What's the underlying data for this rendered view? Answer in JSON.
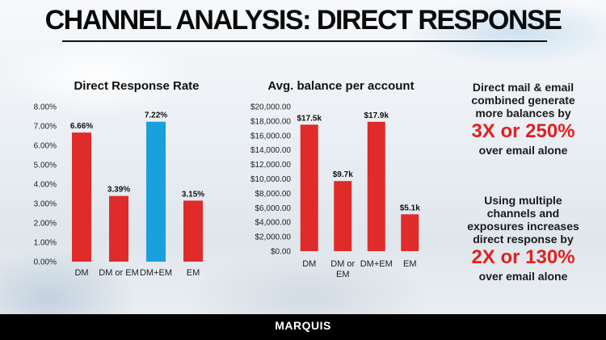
{
  "headline": "CHANNEL ANALYSIS: DIRECT RESPONSE",
  "colors": {
    "red": "#e02b2b",
    "blue": "#1aa0dc",
    "accent_text": "#e02020",
    "footer": "#000000"
  },
  "callouts": [
    {
      "lines": [
        "Direct mail & email",
        "combined generate",
        "more balances by"
      ],
      "big": "3X or 250%",
      "after": "over email alone"
    },
    {
      "lines": [
        "Using multiple",
        "channels and",
        "exposures increases",
        "direct response by"
      ],
      "big": "2X or 130%",
      "after": "over email alone"
    }
  ],
  "footer": {
    "logo_text": "MARQUIS"
  },
  "chart_data": [
    {
      "type": "bar",
      "title": "Direct Response Rate",
      "categories": [
        "DM",
        "DM or EM",
        "DM+EM",
        "EM"
      ],
      "values": [
        6.66,
        3.39,
        7.22,
        3.15
      ],
      "data_labels": [
        "6.66%",
        "3.39%",
        "7.22%",
        "3.15%"
      ],
      "bar_colors": [
        "#e02b2b",
        "#e02b2b",
        "#1aa0dc",
        "#e02b2b"
      ],
      "ylim": [
        0,
        8
      ],
      "yticks": [
        0,
        1,
        2,
        3,
        4,
        5,
        6,
        7,
        8
      ],
      "ytick_labels": [
        "0.00%",
        "1.00%",
        "2.00%",
        "3.00%",
        "4.00%",
        "5.00%",
        "6.00%",
        "7.00%",
        "8.00%"
      ],
      "grid": false,
      "legend": "none"
    },
    {
      "type": "bar",
      "title": "Avg. balance per account",
      "categories": [
        "DM",
        "DM or EM",
        "DM+EM",
        "EM"
      ],
      "values": [
        17500,
        9700,
        17900,
        5100
      ],
      "data_labels": [
        "$17.5k",
        "$9.7k",
        "$17.9k",
        "$5.1k"
      ],
      "bar_colors": [
        "#e02b2b",
        "#e02b2b",
        "#e02b2b",
        "#e02b2b"
      ],
      "ylim": [
        0,
        20000
      ],
      "yticks": [
        0,
        2000,
        4000,
        6000,
        8000,
        10000,
        12000,
        14000,
        16000,
        18000,
        20000
      ],
      "ytick_labels": [
        "$0.00",
        "$2,000.00",
        "$4,000.00",
        "$6,000.00",
        "$8,000.00",
        "$10,000.00",
        "$12,000.00",
        "$14,000.00",
        "$16,000.00",
        "$18,000.00",
        "$20,000.00"
      ],
      "grid": false,
      "legend": "none"
    }
  ]
}
